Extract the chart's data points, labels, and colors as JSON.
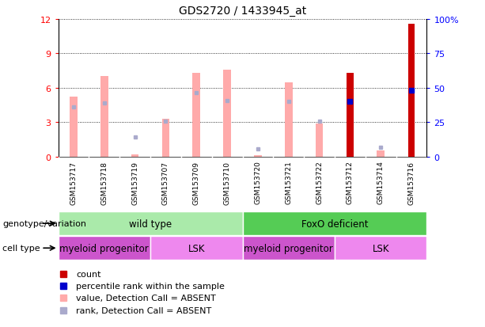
{
  "title": "GDS2720 / 1433945_at",
  "samples": [
    "GSM153717",
    "GSM153718",
    "GSM153719",
    "GSM153707",
    "GSM153709",
    "GSM153710",
    "GSM153720",
    "GSM153721",
    "GSM153722",
    "GSM153712",
    "GSM153714",
    "GSM153716"
  ],
  "count_values": [
    0,
    0,
    0,
    0,
    0,
    0,
    0,
    0,
    0,
    7.3,
    0,
    11.6
  ],
  "rank_values": [
    0,
    0,
    0,
    0,
    0,
    0,
    0,
    0,
    0,
    4.8,
    0,
    5.8
  ],
  "absent_value_bars": [
    5.2,
    7.0,
    0.2,
    3.3,
    7.3,
    7.6,
    0.1,
    6.5,
    2.9,
    0,
    0.5,
    0
  ],
  "absent_rank_bars": [
    4.3,
    4.7,
    1.7,
    3.1,
    5.6,
    4.9,
    0.7,
    4.8,
    3.1,
    0,
    0.8,
    0
  ],
  "ylim": [
    0,
    12
  ],
  "y2lim": [
    0,
    100
  ],
  "yticks": [
    0,
    3,
    6,
    9,
    12
  ],
  "y2ticks": [
    0,
    25,
    50,
    75,
    100
  ],
  "y2ticklabels": [
    "0",
    "25",
    "50",
    "75",
    "100%"
  ],
  "count_color": "#cc0000",
  "rank_color": "#0000cc",
  "absent_value_color": "#ffaaaa",
  "absent_rank_color": "#aaaacc",
  "bg_color": "#ffffff",
  "xtick_bg": "#cccccc",
  "genotype_groups": [
    {
      "label": "wild type",
      "start": 0,
      "end": 6,
      "color": "#aaeaaa"
    },
    {
      "label": "FoxO deficient",
      "start": 6,
      "end": 12,
      "color": "#55cc55"
    }
  ],
  "cell_type_groups": [
    {
      "label": "myeloid progenitor",
      "start": 0,
      "end": 3,
      "color": "#cc55cc"
    },
    {
      "label": "LSK",
      "start": 3,
      "end": 6,
      "color": "#ee88ee"
    },
    {
      "label": "myeloid progenitor",
      "start": 6,
      "end": 9,
      "color": "#cc55cc"
    },
    {
      "label": "LSK",
      "start": 9,
      "end": 12,
      "color": "#ee88ee"
    }
  ],
  "legend_items": [
    {
      "label": "count",
      "color": "#cc0000"
    },
    {
      "label": "percentile rank within the sample",
      "color": "#0000cc"
    },
    {
      "label": "value, Detection Call = ABSENT",
      "color": "#ffaaaa"
    },
    {
      "label": "rank, Detection Call = ABSENT",
      "color": "#aaaacc"
    }
  ],
  "genotype_label": "genotype/variation",
  "cell_type_label": "cell type"
}
